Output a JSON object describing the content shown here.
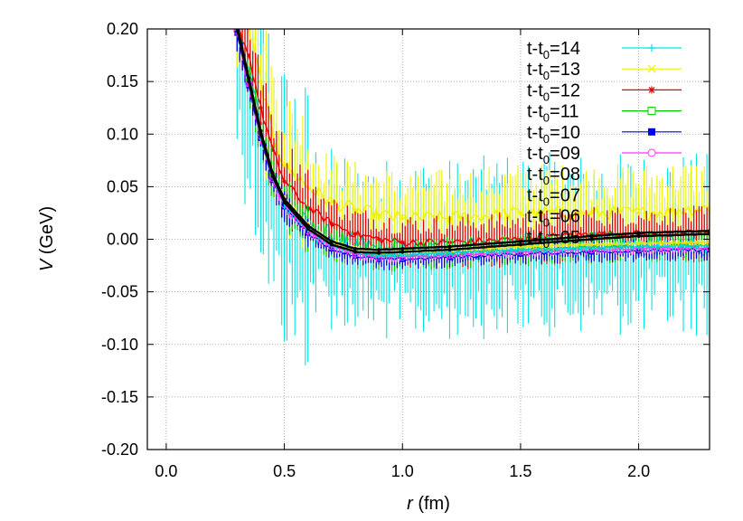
{
  "chart_data": {
    "type": "line",
    "title": "",
    "xlabel": {
      "var": "r",
      "unit": " (fm)"
    },
    "ylabel": {
      "var": "V",
      "unit": " (GeV)"
    },
    "xlim": [
      -0.08,
      2.3
    ],
    "ylim": [
      -0.2,
      0.2
    ],
    "grid": true,
    "legend_position": "top-right",
    "x_ticks": [
      0.0,
      0.5,
      1.0,
      1.5,
      2.0
    ],
    "x_tick_labels": [
      "0.0",
      "0.5",
      "1.0",
      "1.5",
      "2.0"
    ],
    "y_ticks": [
      0.2,
      0.15,
      0.1,
      0.05,
      0.0,
      -0.05,
      -0.1,
      -0.15,
      -0.2
    ],
    "y_tick_labels": [
      "0.20",
      "0.15",
      "0.10",
      "0.05",
      "0.00",
      "-0.05",
      "-0.10",
      "-0.15",
      "-0.20"
    ],
    "series": [
      {
        "name": "t-t0=14",
        "prefix": "t-t",
        "sub": "0",
        "suffix": "=14",
        "color": "#00e5e5",
        "marker": "plus",
        "noise": 0.065,
        "offset": 0.0,
        "x": [
          0.3,
          0.35,
          0.4,
          0.45,
          0.5,
          0.6,
          0.7,
          0.8,
          0.9,
          1.0,
          1.2,
          1.5,
          1.8,
          2.0,
          2.3
        ],
        "values": [
          0.2,
          0.16,
          0.11,
          0.06,
          0.03,
          0.01,
          0.0,
          -0.005,
          -0.01,
          -0.01,
          -0.01,
          -0.005,
          -0.005,
          -0.005,
          -0.005
        ]
      },
      {
        "name": "t-t0=13",
        "prefix": "t-t",
        "sub": "0",
        "suffix": "=13",
        "color": "#f2f200",
        "marker": "cross",
        "noise": 0.035,
        "offset": 0.02,
        "x": [
          0.3,
          0.35,
          0.4,
          0.45,
          0.5,
          0.6,
          0.7,
          0.8,
          0.9,
          1.0,
          1.2,
          1.5,
          1.8,
          2.0,
          2.3
        ],
        "values": [
          0.2,
          0.18,
          0.13,
          0.08,
          0.05,
          0.03,
          0.015,
          0.008,
          0.003,
          0.0,
          0.0,
          0.005,
          0.005,
          0.005,
          0.01
        ]
      },
      {
        "name": "t-t0=12",
        "prefix": "t-t",
        "sub": "0",
        "suffix": "=12",
        "color": "#e60000",
        "marker": "star",
        "noise": 0.02,
        "offset": 0.005,
        "x": [
          0.3,
          0.35,
          0.4,
          0.45,
          0.5,
          0.6,
          0.7,
          0.8,
          0.9,
          1.0,
          1.2,
          1.5,
          1.8,
          2.0,
          2.3
        ],
        "values": [
          0.2,
          0.17,
          0.12,
          0.08,
          0.05,
          0.025,
          0.01,
          0.0,
          -0.005,
          -0.008,
          -0.008,
          -0.005,
          0.0,
          0.0,
          0.0
        ]
      },
      {
        "name": "t-t0=11",
        "prefix": "t-t",
        "sub": "0",
        "suffix": "=11",
        "color": "#00cc00",
        "marker": "open-square",
        "noise": 0.012,
        "offset": 0.0,
        "x": [
          0.3,
          0.35,
          0.4,
          0.45,
          0.5,
          0.6,
          0.7,
          0.8,
          0.9,
          1.0,
          1.2,
          1.5,
          1.8,
          2.0,
          2.3
        ],
        "values": [
          0.2,
          0.15,
          0.1,
          0.06,
          0.035,
          0.01,
          -0.005,
          -0.012,
          -0.015,
          -0.015,
          -0.013,
          -0.01,
          -0.008,
          -0.007,
          -0.006
        ]
      },
      {
        "name": "t-t0=10",
        "prefix": "t-t",
        "sub": "0",
        "suffix": "=10",
        "color": "#0000e6",
        "marker": "filled-square",
        "noise": 0.008,
        "offset": -0.004,
        "x": [
          0.3,
          0.35,
          0.4,
          0.45,
          0.5,
          0.6,
          0.7,
          0.8,
          0.9,
          1.0,
          1.2,
          1.5,
          1.8,
          2.0,
          2.3
        ],
        "values": [
          0.2,
          0.15,
          0.1,
          0.06,
          0.035,
          0.01,
          -0.005,
          -0.012,
          -0.015,
          -0.015,
          -0.013,
          -0.01,
          -0.008,
          -0.007,
          -0.006
        ]
      },
      {
        "name": "t-t0=09",
        "prefix": "t-t",
        "sub": "0",
        "suffix": "=09",
        "color": "#ff33ff",
        "marker": "open-circle",
        "noise": 0.004,
        "offset": -0.002,
        "x": [
          0.3,
          0.35,
          0.4,
          0.45,
          0.5,
          0.6,
          0.7,
          0.8,
          0.9,
          1.0,
          1.2,
          1.5,
          1.8,
          2.0,
          2.3
        ],
        "values": [
          0.2,
          0.15,
          0.1,
          0.06,
          0.035,
          0.01,
          -0.005,
          -0.012,
          -0.015,
          -0.015,
          -0.013,
          -0.01,
          -0.008,
          -0.007,
          -0.006
        ]
      },
      {
        "name": "t-t0=08",
        "prefix": "t-t",
        "sub": "0",
        "suffix": "=08",
        "color": "#00d5d5",
        "marker": "none",
        "noise": 0.003,
        "offset": 0.0,
        "x": [
          0.3,
          0.35,
          0.4,
          0.45,
          0.5,
          0.6,
          0.7,
          0.8,
          0.9,
          1.0,
          1.2,
          1.5,
          1.8,
          2.0,
          2.3
        ],
        "values": [
          0.2,
          0.15,
          0.1,
          0.06,
          0.035,
          0.01,
          -0.005,
          -0.012,
          -0.015,
          -0.015,
          -0.013,
          -0.01,
          -0.008,
          -0.007,
          -0.006
        ]
      },
      {
        "name": "t-t0=07",
        "prefix": "t-t",
        "sub": "0",
        "suffix": "=07",
        "color": "#e5e500",
        "marker": "none",
        "noise": 0.002,
        "offset": 0.003,
        "x": [
          0.3,
          0.35,
          0.4,
          0.45,
          0.5,
          0.6,
          0.7,
          0.8,
          0.9,
          1.0,
          1.2,
          1.5,
          1.8,
          2.0,
          2.3
        ],
        "values": [
          0.2,
          0.15,
          0.1,
          0.06,
          0.035,
          0.01,
          -0.005,
          -0.012,
          -0.015,
          -0.015,
          -0.013,
          -0.01,
          -0.008,
          -0.007,
          -0.006
        ]
      },
      {
        "name": "t-t0=06",
        "prefix": "t-t",
        "sub": "0",
        "suffix": "=06",
        "color": "#000000",
        "marker": "none",
        "noise": 0.001,
        "offset": 0.003,
        "x": [
          0.3,
          0.35,
          0.4,
          0.45,
          0.5,
          0.6,
          0.7,
          0.8,
          0.9,
          1.0,
          1.2,
          1.5,
          1.8,
          2.0,
          2.3
        ],
        "values": [
          0.2,
          0.15,
          0.1,
          0.06,
          0.035,
          0.01,
          -0.005,
          -0.012,
          -0.013,
          -0.012,
          -0.01,
          -0.005,
          0.0,
          0.003,
          0.005
        ]
      },
      {
        "name": "t-t0=05",
        "prefix": "t-t",
        "sub": "0",
        "suffix": "=05",
        "color": "#000000",
        "marker": "none",
        "noise": 0.001,
        "offset": 0.0,
        "x": [
          0.3,
          0.35,
          0.4,
          0.45,
          0.5,
          0.6,
          0.7,
          0.8,
          0.9,
          1.0,
          1.2,
          1.5,
          1.8,
          2.0,
          2.3
        ],
        "values": [
          0.2,
          0.15,
          0.1,
          0.06,
          0.035,
          0.01,
          -0.005,
          -0.012,
          -0.013,
          -0.012,
          -0.01,
          -0.005,
          0.0,
          0.003,
          0.005
        ]
      }
    ]
  }
}
